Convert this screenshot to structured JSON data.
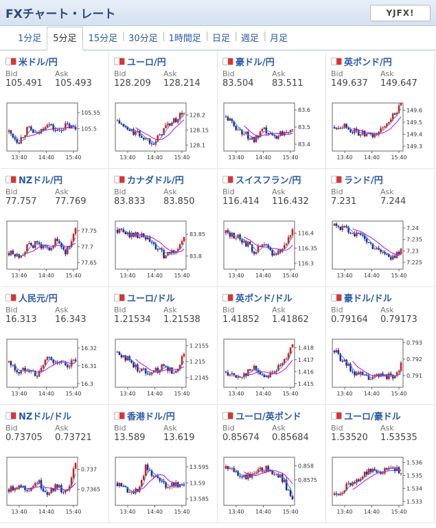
{
  "header": {
    "title": "FXチャート・レート",
    "logo": "YJFX!"
  },
  "tabs": [
    "1分足",
    "5分足",
    "15分足",
    "30分足",
    "1時間足",
    "日足",
    "週足",
    "月足"
  ],
  "active_tab": 1,
  "labels": {
    "bid": "Bid",
    "ask": "Ask"
  },
  "x_ticks": [
    "13:40",
    "14:40",
    "15:40"
  ],
  "colors": {
    "up": "#d11f1f",
    "down": "#1a2da8",
    "ma1": "#cc00cc",
    "ma2": "#2a8fd0"
  },
  "cards": [
    {
      "pair": "米ドル/円",
      "bid": "105.491",
      "ask": "105.493",
      "y_ticks": [
        "105.55",
        "105.5"
      ],
      "ylim": [
        105.43,
        105.58
      ],
      "trend": [
        105.49,
        105.46,
        105.5,
        105.48,
        105.52,
        105.49,
        105.51,
        105.5
      ]
    },
    {
      "pair": "ユーロ/円",
      "bid": "128.209",
      "ask": "128.214",
      "y_ticks": [
        "128.2",
        "128.15",
        "128.1"
      ],
      "ylim": [
        128.08,
        128.24
      ],
      "trend": [
        128.18,
        128.15,
        128.14,
        128.12,
        128.11,
        128.16,
        128.18,
        128.21
      ]
    },
    {
      "pair": "豪ドル/円",
      "bid": "83.504",
      "ask": "83.511",
      "y_ticks": [
        "83.6",
        "83.5",
        "83.4"
      ],
      "ylim": [
        83.36,
        83.64
      ],
      "trend": [
        83.56,
        83.5,
        83.46,
        83.42,
        83.48,
        83.44,
        83.47,
        83.5
      ]
    },
    {
      "pair": "英ポンド/円",
      "bid": "149.637",
      "ask": "149.647",
      "y_ticks": [
        "149.6",
        "149.5",
        "149.4",
        "149.3"
      ],
      "ylim": [
        149.26,
        149.66
      ],
      "trend": [
        149.46,
        149.48,
        149.42,
        149.4,
        149.38,
        149.44,
        149.55,
        149.63
      ]
    },
    {
      "pair": "NZドル/円",
      "bid": "77.757",
      "ask": "77.769",
      "y_ticks": [
        "77.75",
        "77.7",
        "77.65"
      ],
      "ylim": [
        77.63,
        77.78
      ],
      "trend": [
        77.68,
        77.67,
        77.7,
        77.71,
        77.69,
        77.72,
        77.68,
        77.75
      ]
    },
    {
      "pair": "カナダドル/円",
      "bid": "83.833",
      "ask": "83.850",
      "y_ticks": [
        "83.85",
        "83.8"
      ],
      "ylim": [
        83.77,
        83.88
      ],
      "trend": [
        83.86,
        83.85,
        83.85,
        83.84,
        83.82,
        83.8,
        83.81,
        83.84
      ]
    },
    {
      "pair": "スイスフラン/円",
      "bid": "116.414",
      "ask": "116.432",
      "y_ticks": [
        "116.4",
        "116.35",
        "116.3"
      ],
      "ylim": [
        116.28,
        116.44
      ],
      "trend": [
        116.4,
        116.39,
        116.37,
        116.34,
        116.36,
        116.33,
        116.35,
        116.41
      ]
    },
    {
      "pair": "ランド/円",
      "bid": "7.231",
      "ask": "7.244",
      "y_ticks": [
        "7.24",
        "7.235",
        "7.23",
        "7.225"
      ],
      "ylim": [
        7.222,
        7.243
      ],
      "trend": [
        7.241,
        7.24,
        7.238,
        7.236,
        7.232,
        7.23,
        7.226,
        7.231
      ]
    },
    {
      "pair": "人民元/円",
      "bid": "16.313",
      "ask": "16.343",
      "y_ticks": [
        "16.32",
        "16.31",
        "16.3"
      ],
      "ylim": [
        16.298,
        16.325
      ],
      "trend": [
        16.312,
        16.306,
        16.309,
        16.304,
        16.315,
        16.312,
        16.31,
        16.313
      ]
    },
    {
      "pair": "ユーロ/ドル",
      "bid": "1.21534",
      "ask": "1.21538",
      "y_ticks": [
        "1.2155",
        "1.215",
        "1.2145"
      ],
      "ylim": [
        1.2142,
        1.2157
      ],
      "trend": [
        1.2153,
        1.2151,
        1.2148,
        1.2147,
        1.2147,
        1.2149,
        1.2146,
        1.2153
      ]
    },
    {
      "pair": "英ポンド/ドル",
      "bid": "1.41852",
      "ask": "1.41862",
      "y_ticks": [
        "1.418",
        "1.417",
        "1.416",
        "1.415"
      ],
      "ylim": [
        1.4147,
        1.4187
      ],
      "trend": [
        1.416,
        1.4155,
        1.4158,
        1.4163,
        1.4156,
        1.416,
        1.4166,
        1.4185
      ]
    },
    {
      "pair": "豪ドル/ドル",
      "bid": "0.79164",
      "ask": "0.79173",
      "y_ticks": [
        "0.793",
        "0.792",
        "0.791"
      ],
      "ylim": [
        0.7903,
        0.7932
      ],
      "trend": [
        0.7925,
        0.7918,
        0.7912,
        0.791,
        0.7908,
        0.7911,
        0.7909,
        0.7916
      ]
    },
    {
      "pair": "NZドル/ドル",
      "bid": "0.73705",
      "ask": "0.73721",
      "y_ticks": [
        "0.737",
        "0.7365"
      ],
      "ylim": [
        0.7361,
        0.7373
      ],
      "trend": [
        0.7365,
        0.7366,
        0.7365,
        0.7367,
        0.7364,
        0.7366,
        0.7364,
        0.7371
      ]
    },
    {
      "pair": "香港ドル/円",
      "bid": "13.589",
      "ask": "13.619",
      "y_ticks": [
        "13.595",
        "13.59",
        "13.585"
      ],
      "ylim": [
        13.583,
        13.598
      ],
      "trend": [
        13.59,
        13.588,
        13.587,
        13.595,
        13.592,
        13.589,
        13.59,
        13.589
      ]
    },
    {
      "pair": "ユーロ/英ポンド",
      "bid": "0.85674",
      "ask": "0.85684",
      "y_ticks": [
        "0.858",
        "0.8575"
      ],
      "ylim": [
        0.8566,
        0.8583
      ],
      "trend": [
        0.8579,
        0.8578,
        0.8576,
        0.8577,
        0.8579,
        0.8578,
        0.8575,
        0.8568
      ]
    },
    {
      "pair": "ユーロ/豪ドル",
      "bid": "1.53520",
      "ask": "1.53535",
      "y_ticks": [
        "1.536",
        "1.535",
        "1.534",
        "1.533"
      ],
      "ylim": [
        1.5327,
        1.5364
      ],
      "trend": [
        1.5335,
        1.534,
        1.5345,
        1.535,
        1.5355,
        1.5353,
        1.5358,
        1.5352
      ]
    }
  ]
}
